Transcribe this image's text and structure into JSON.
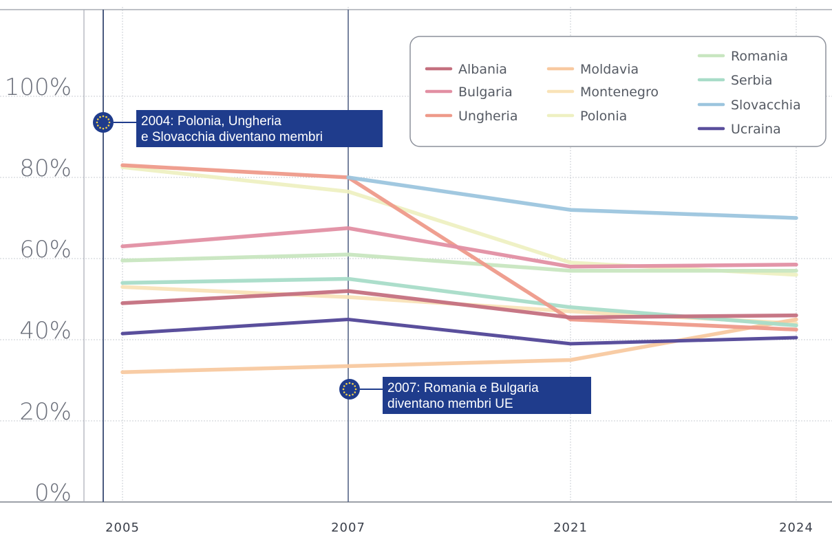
{
  "chart_data": {
    "type": "line",
    "title": "",
    "xlabel": "",
    "ylabel": "",
    "x": [
      "2005",
      "2007",
      "2021",
      "2024"
    ],
    "ylim": [
      0,
      120
    ],
    "y_ticks": [
      "0%",
      "20%",
      "40%",
      "60%",
      "80%",
      "100%"
    ],
    "grid": true,
    "legend_position": "top-right",
    "series": [
      {
        "name": "Albania",
        "color": "#c4707f",
        "values": [
          49,
          52,
          45.5,
          46
        ]
      },
      {
        "name": "Bulgaria",
        "color": "#e28fa3",
        "values": [
          63,
          67.5,
          58,
          58.5
        ]
      },
      {
        "name": "Ungheria",
        "color": "#ee9a8a",
        "values": [
          83,
          80,
          45,
          42.5
        ]
      },
      {
        "name": "Moldavia",
        "color": "#f8c9a0",
        "values": [
          32,
          33.5,
          35,
          45
        ]
      },
      {
        "name": "Montenegro",
        "color": "#f9e3b8",
        "values": [
          53,
          50.5,
          47,
          44
        ]
      },
      {
        "name": "Polonia",
        "color": "#eef0c2",
        "values": [
          82.5,
          76.5,
          59,
          56
        ]
      },
      {
        "name": "Romania",
        "color": "#c8e6c0",
        "values": [
          59.5,
          61,
          57,
          57
        ]
      },
      {
        "name": "Serbia",
        "color": "#a8dcc8",
        "values": [
          54,
          55,
          48,
          43.5
        ]
      },
      {
        "name": "Slovacchia",
        "color": "#9cc5de",
        "values": [
          null,
          80,
          72,
          70
        ]
      },
      {
        "name": "Ucraina",
        "color": "#5a4f9c",
        "values": [
          41.5,
          45,
          39,
          40.5
        ]
      }
    ],
    "annotations": [
      {
        "id": "2004",
        "x_position": "before 2005",
        "lines": [
          "2004: Polonia, Ungheria",
          "e Slovacchia diventano membri"
        ]
      },
      {
        "id": "2007",
        "x_position": "2007",
        "lines": [
          "2007: Romania e Bulgaria",
          "diventano membri UE"
        ]
      }
    ]
  }
}
